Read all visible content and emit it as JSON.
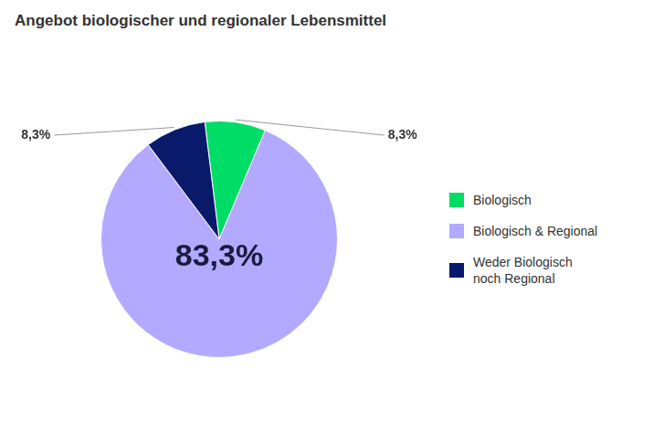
{
  "chart_data": {
    "type": "pie",
    "title": "Angebot biologischer und regionaler Lebensmittel",
    "categories": [
      "Biologisch",
      "Biologisch & Regional",
      "Weder Biologisch\nnoch Regional"
    ],
    "values": [
      8.3,
      83.3,
      8.3
    ],
    "value_labels": [
      "8,3%",
      "83,3%",
      "8,3%"
    ],
    "data_labels": true,
    "colors": [
      "#00dd66",
      "#b3aaff",
      "#0a1a6b"
    ],
    "legend": "right"
  }
}
